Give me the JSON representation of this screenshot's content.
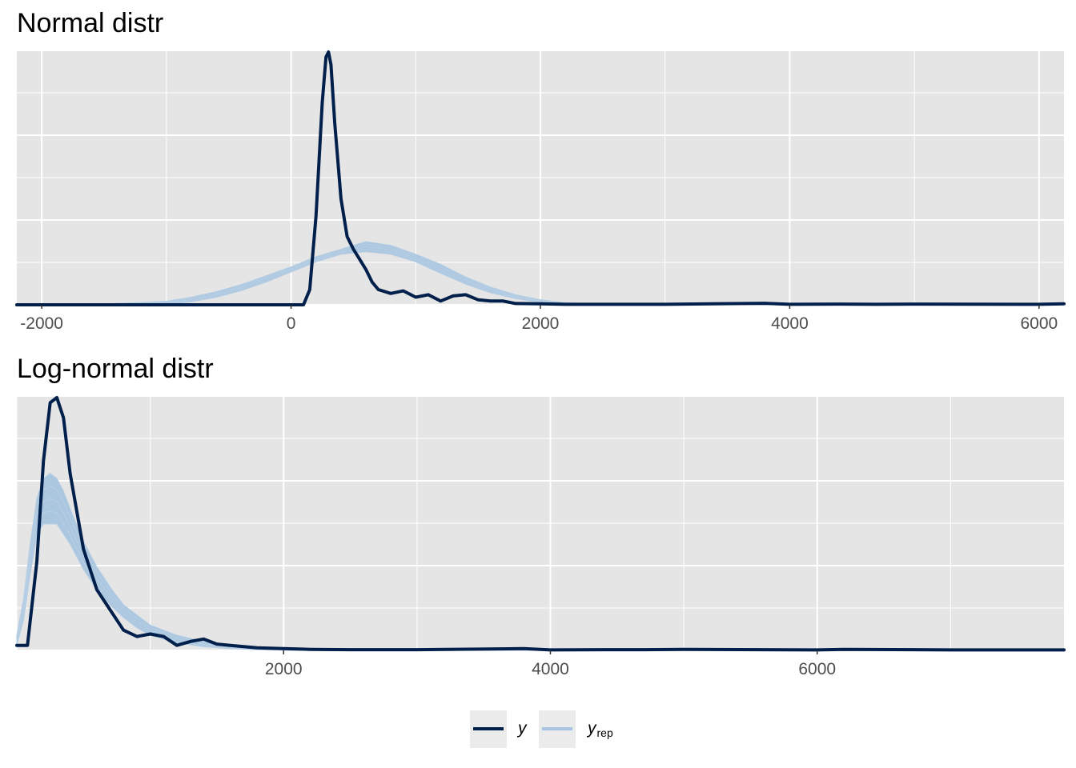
{
  "colors": {
    "panel_bg": "#e5e5e5",
    "grid": "#ffffff",
    "y_line": "#011f4b",
    "yrep_line": "#a8c4de",
    "tick_text": "#4d4d4d"
  },
  "legend": {
    "y_label": "y",
    "yrep_label": "y",
    "yrep_sub": "rep"
  },
  "chart_data": [
    {
      "type": "line",
      "title": "Normal distr",
      "xlabel": "",
      "ylabel": "",
      "xlim": [
        -2200,
        6200
      ],
      "ylim": [
        0,
        1
      ],
      "x_ticks": [
        -2000,
        0,
        2000,
        4000,
        6000
      ],
      "x_tick_labels": [
        "-2000",
        "0",
        "2000",
        "4000",
        "6000"
      ],
      "grid": true,
      "series": [
        {
          "name": "y",
          "x": [
            -2200,
            100,
            150,
            200,
            250,
            280,
            300,
            320,
            350,
            400,
            450,
            500,
            550,
            600,
            650,
            700,
            800,
            900,
            1000,
            1100,
            1200,
            1300,
            1400,
            1500,
            1600,
            1700,
            1800,
            2000,
            2200,
            3000,
            3800,
            4000,
            4400,
            4700,
            5000,
            6000,
            6200
          ],
          "y": [
            0,
            0.0,
            0.06,
            0.35,
            0.8,
            0.98,
            1.0,
            0.95,
            0.72,
            0.42,
            0.27,
            0.22,
            0.18,
            0.14,
            0.09,
            0.06,
            0.045,
            0.055,
            0.03,
            0.04,
            0.015,
            0.035,
            0.04,
            0.02,
            0.015,
            0.015,
            0.005,
            0.004,
            0.002,
            0.002,
            0.006,
            0.002,
            0.003,
            0.002,
            0.003,
            0.002,
            0.004
          ]
        },
        {
          "name": "y rep",
          "x": [
            -2200,
            -1500,
            -1000,
            -800,
            -600,
            -400,
            -200,
            0,
            200,
            400,
            600,
            800,
            1000,
            1200,
            1400,
            1600,
            1800,
            2000,
            2200,
            2500,
            6200
          ],
          "y_low": [
            0,
            0.0,
            0.003,
            0.012,
            0.03,
            0.056,
            0.09,
            0.13,
            0.17,
            0.2,
            0.21,
            0.2,
            0.17,
            0.125,
            0.082,
            0.048,
            0.025,
            0.01,
            0.003,
            0.0,
            0
          ],
          "y_high": [
            0,
            0.003,
            0.014,
            0.03,
            0.052,
            0.08,
            0.115,
            0.15,
            0.19,
            0.22,
            0.25,
            0.235,
            0.2,
            0.16,
            0.11,
            0.07,
            0.04,
            0.02,
            0.008,
            0.002,
            0
          ]
        }
      ]
    },
    {
      "type": "line",
      "title": "Log-normal distr",
      "xlabel": "",
      "ylabel": "",
      "xlim": [
        0,
        7850
      ],
      "ylim": [
        0,
        1
      ],
      "x_ticks": [
        2000,
        4000,
        6000
      ],
      "x_tick_labels": [
        "2000",
        "4000",
        "6000"
      ],
      "grid": true,
      "series": [
        {
          "name": "y",
          "x": [
            0,
            80,
            150,
            200,
            250,
            300,
            350,
            400,
            500,
            600,
            700,
            800,
            900,
            1000,
            1100,
            1200,
            1300,
            1400,
            1500,
            1600,
            1700,
            1800,
            2000,
            2200,
            2500,
            3000,
            3800,
            4000,
            4400,
            4700,
            5000,
            6000,
            6200,
            7000,
            7850
          ],
          "y": [
            0.02,
            0.02,
            0.35,
            0.75,
            0.98,
            1.0,
            0.92,
            0.7,
            0.4,
            0.24,
            0.16,
            0.08,
            0.055,
            0.065,
            0.055,
            0.02,
            0.035,
            0.045,
            0.025,
            0.02,
            0.015,
            0.01,
            0.007,
            0.004,
            0.003,
            0.003,
            0.007,
            0.002,
            0.003,
            0.003,
            0.004,
            0.002,
            0.004,
            0.002,
            0.002
          ]
        },
        {
          "name": "y rep",
          "x": [
            0,
            50,
            100,
            150,
            200,
            250,
            300,
            350,
            400,
            500,
            600,
            700,
            800,
            900,
            1000,
            1200,
            1400,
            1600,
            1800,
            2000,
            2200,
            7850
          ],
          "y_low": [
            0.02,
            0.12,
            0.3,
            0.46,
            0.5,
            0.5,
            0.5,
            0.46,
            0.42,
            0.32,
            0.24,
            0.18,
            0.13,
            0.09,
            0.06,
            0.03,
            0.015,
            0.007,
            0.003,
            0.001,
            0.0,
            0
          ],
          "y_high": [
            0.06,
            0.2,
            0.42,
            0.6,
            0.68,
            0.7,
            0.68,
            0.63,
            0.56,
            0.43,
            0.33,
            0.25,
            0.18,
            0.14,
            0.1,
            0.06,
            0.035,
            0.018,
            0.008,
            0.003,
            0.001,
            0
          ]
        }
      ]
    }
  ]
}
